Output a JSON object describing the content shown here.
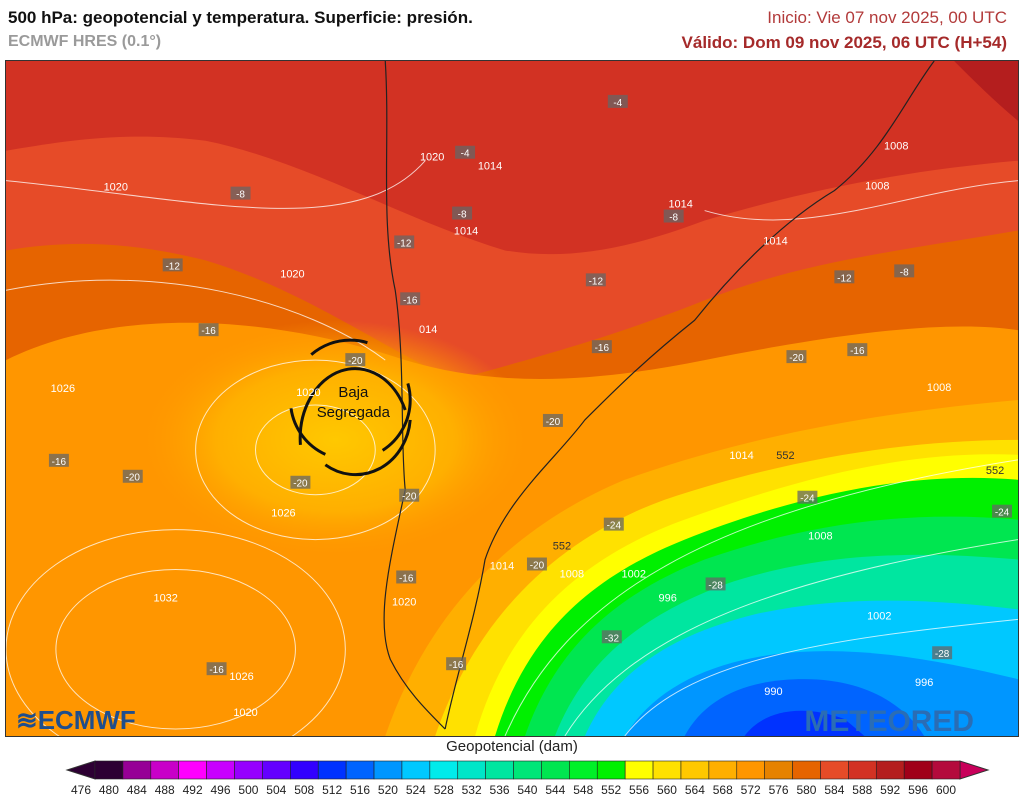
{
  "header": {
    "title": "500 hPa: geopotencial y temperatura. Superficie: presión.",
    "model": "ECMWF HRES (0.1°)",
    "init": "Inicio: Vie 07 nov 2025, 00 UTC",
    "valid": "Válido: Dom 09 nov 2025, 06 UTC (H+54)"
  },
  "map": {
    "annotation": {
      "line1": "Baja",
      "line2": "Segregada"
    },
    "pressure_labels": [
      "1020",
      "1020",
      "1014",
      "1014",
      "1020",
      "1026",
      "1020",
      "014",
      "1026",
      "1032",
      "1026",
      "1020",
      "1020",
      "1014",
      "1014",
      "1014",
      "1008",
      "1008",
      "1008",
      "1008",
      "1008",
      "1002",
      "1002",
      "996",
      "996",
      "990",
      "1014"
    ],
    "temperature_labels": [
      "-8",
      "-12",
      "-16",
      "-20",
      "-16",
      "-20",
      "-20",
      "-16",
      "-12",
      "-16",
      "-8",
      "-4",
      "-4",
      "-8",
      "-12",
      "-16",
      "-12",
      "-8",
      "-16",
      "-20",
      "-20",
      "-20",
      "-16",
      "-20",
      "-16",
      "-24",
      "-24",
      "-24",
      "-28",
      "-32",
      "-28"
    ],
    "geopotential_labels": [
      "552",
      "552",
      "552"
    ],
    "logos": {
      "left": "ECMWF",
      "right": "METEORED"
    }
  },
  "colorbar": {
    "title": "Geopotencial (dam)",
    "ticks": [
      "476",
      "480",
      "484",
      "488",
      "492",
      "496",
      "500",
      "504",
      "508",
      "512",
      "516",
      "520",
      "524",
      "528",
      "532",
      "536",
      "540",
      "544",
      "548",
      "552",
      "556",
      "560",
      "564",
      "568",
      "572",
      "576",
      "580",
      "584",
      "588",
      "592",
      "596",
      "600"
    ],
    "colors": [
      "#2d0033",
      "#960096",
      "#c800c8",
      "#ff00ff",
      "#c800ff",
      "#9600ff",
      "#6400ff",
      "#3200ff",
      "#0032ff",
      "#0064ff",
      "#0096ff",
      "#00c8ff",
      "#00ebeb",
      "#00e6c8",
      "#00e6a0",
      "#00e678",
      "#00e650",
      "#00f028",
      "#00f000",
      "#ffff00",
      "#ffe100",
      "#ffc800",
      "#ffaf00",
      "#ff9600",
      "#e68200",
      "#e66400",
      "#e64b28",
      "#d23223",
      "#b41e1e",
      "#a00019",
      "#b40a3c"
    ],
    "under_color": "#2d0033",
    "over_color": "#c8005a"
  }
}
